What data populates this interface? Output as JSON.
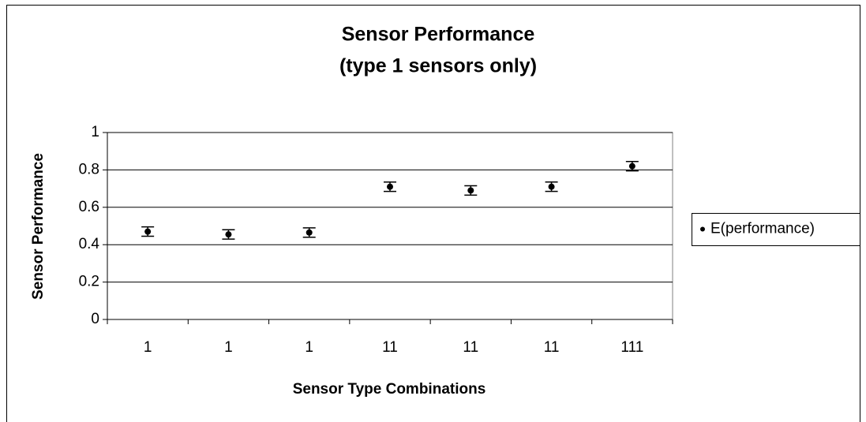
{
  "chart_data": {
    "type": "scatter",
    "title": "Sensor Performance",
    "subtitle": "(type 1 sensors only)",
    "x_label": "Sensor Type Combinations",
    "y_label": "Sensor Performance",
    "categories": [
      "1",
      "1",
      "1",
      "11",
      "11",
      "11",
      "111"
    ],
    "series": [
      {
        "name": "E(performance)",
        "color": "#000000",
        "values": [
          0.47,
          0.455,
          0.465,
          0.71,
          0.69,
          0.71,
          0.82
        ],
        "errors": [
          0.025,
          0.025,
          0.025,
          0.025,
          0.025,
          0.025,
          0.025
        ]
      }
    ],
    "ylim": [
      0,
      1
    ],
    "yticks": [
      0,
      0.2,
      0.4,
      0.6,
      0.8,
      1
    ],
    "grid": true,
    "legend": "right"
  }
}
